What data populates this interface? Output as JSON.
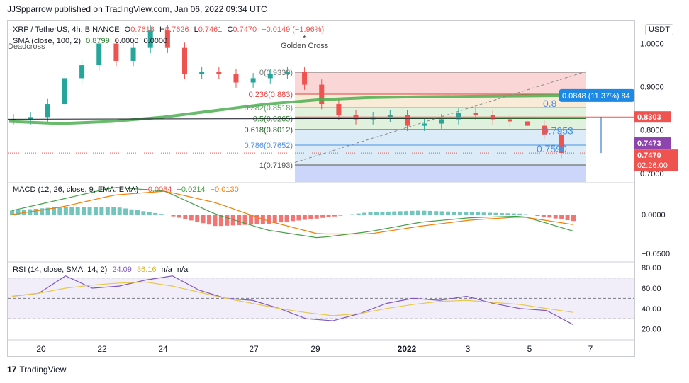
{
  "header": {
    "publisher": "JJSpparrow published on TradingView.com, Jan 06, 2022 09:34 UTC"
  },
  "currency_button": "USDT",
  "footer": {
    "brand": "TradingView"
  },
  "price_panel": {
    "symbol": "XRP / TetherUS, 4h, BINANCE",
    "o_label": "O",
    "o": "0.7618",
    "h_label": "H",
    "h": "0.7626",
    "l_label": "L",
    "l": "0.7461",
    "c_label": "C",
    "c": "0.7470",
    "change": "−0.0149 (−1.96%)",
    "sma_label": "SMA (close, 100, 2)",
    "sma_value": "0.8799",
    "sma_v2": "0.0000",
    "sma_v3": "0.0000",
    "deadcross": "Deadcross",
    "golden_cross": "Golden Cross",
    "measure": "0.0848 (11.37%) 84"
  },
  "fib_labels": [
    "0(0.9338)",
    "0.236(0.883)",
    "0.382(0.8518)",
    "0.5(0.8265)",
    "0.618(0.8012)",
    "0.786(0.7652)",
    "1(0.7193)"
  ],
  "target_labels": [
    "0.8",
    "0.7953",
    "0.7590"
  ],
  "price_axis": {
    "ticks": [
      "1.0000",
      "0.9000",
      "0.8000",
      "0.7000"
    ],
    "badge_red": "0.8303",
    "badge_purple": "0.7473",
    "badge_last": "0.7470",
    "badge_time": "02:26:00"
  },
  "macd_panel": {
    "label": "MACD (12, 26, close, 9, EMA, EMA)",
    "v1": "−0.0084",
    "v2": "−0.0214",
    "v3": "−0.0130",
    "ticks": [
      "0.0000",
      "−0.0500"
    ]
  },
  "rsi_panel": {
    "label": "RSI (14, close, SMA, 14, 2)",
    "v1": "24.09",
    "v2": "36.16",
    "v3": "n/a",
    "v4": "n/a",
    "ticks": [
      "80.00",
      "60.00",
      "40.00",
      "20.00"
    ]
  },
  "time_axis": [
    "20",
    "22",
    "24",
    "27",
    "29",
    "2022",
    "3",
    "5",
    "7"
  ],
  "colors": {
    "up": "#26a69a",
    "down": "#ef5350",
    "sma": "#4caf50",
    "macd": "#43a047",
    "signal": "#f57c00",
    "rsi": "#7e57c2",
    "rsi_ma": "#e6c84b"
  },
  "chart_data": [
    {
      "type": "candlestick",
      "title": "XRP / TetherUS, 4h, BINANCE",
      "x": [
        "20",
        "22",
        "24",
        "27",
        "29",
        "2022",
        "3",
        "5",
        "7"
      ],
      "ylim": [
        0.68,
        1.05
      ],
      "y_ticks": [
        0.7,
        0.8,
        0.9,
        1.0
      ],
      "close_series": [
        0.825,
        0.83,
        0.86,
        0.92,
        0.95,
        1.0,
        0.96,
        0.99,
        1.03,
        0.99,
        0.93,
        0.935,
        0.93,
        0.91,
        0.92,
        0.93,
        0.935,
        0.905,
        0.86,
        0.835,
        0.825,
        0.83,
        0.835,
        0.81,
        0.815,
        0.825,
        0.84,
        0.835,
        0.825,
        0.82,
        0.81,
        0.79,
        0.747
      ],
      "sma_100": [
        0.82,
        0.815,
        0.82,
        0.83,
        0.845,
        0.86,
        0.87,
        0.875,
        0.877,
        0.878,
        0.879,
        0.8799
      ],
      "fibonacci": [
        {
          "level": 0,
          "price": 0.9338
        },
        {
          "level": 0.236,
          "price": 0.883
        },
        {
          "level": 0.382,
          "price": 0.8518
        },
        {
          "level": 0.5,
          "price": 0.8265
        },
        {
          "level": 0.618,
          "price": 0.8012
        },
        {
          "level": 0.786,
          "price": 0.7652
        },
        {
          "level": 1,
          "price": 0.7193
        }
      ],
      "last_price": 0.747,
      "annotations": [
        "Deadcross",
        "Golden Cross",
        "0.0848 (11.37%)"
      ]
    },
    {
      "type": "line",
      "title": "MACD (12, 26, close, 9, EMA, EMA)",
      "ylim": [
        -0.06,
        0.04
      ],
      "series": [
        {
          "name": "MACD",
          "values": [
            0.005,
            0.02,
            0.035,
            0.03,
            0.0,
            -0.02,
            -0.03,
            -0.022,
            -0.01,
            -0.004,
            -0.002,
            -0.0214
          ]
        },
        {
          "name": "Signal",
          "values": [
            0.0,
            0.01,
            0.025,
            0.03,
            0.015,
            -0.008,
            -0.025,
            -0.025,
            -0.015,
            -0.007,
            -0.003,
            -0.013
          ]
        },
        {
          "name": "Histogram",
          "values": [
            0.005,
            0.01,
            0.01,
            0.0,
            -0.015,
            -0.012,
            -0.005,
            0.003,
            0.005,
            0.003,
            0.001,
            -0.0084
          ]
        }
      ]
    },
    {
      "type": "line",
      "title": "RSI (14, close, SMA, 14, 2)",
      "ylim": [
        10,
        85
      ],
      "series": [
        {
          "name": "RSI",
          "values": [
            52,
            55,
            72,
            60,
            62,
            68,
            72,
            58,
            50,
            48,
            40,
            30,
            28,
            35,
            45,
            50,
            48,
            52,
            45,
            40,
            38,
            24.09
          ]
        },
        {
          "name": "RSI MA",
          "values": [
            52,
            55,
            60,
            63,
            65,
            66,
            62,
            56,
            50,
            45,
            40,
            36,
            33,
            35,
            40,
            44,
            47,
            48,
            46,
            44,
            40,
            36.16
          ]
        }
      ]
    }
  ]
}
